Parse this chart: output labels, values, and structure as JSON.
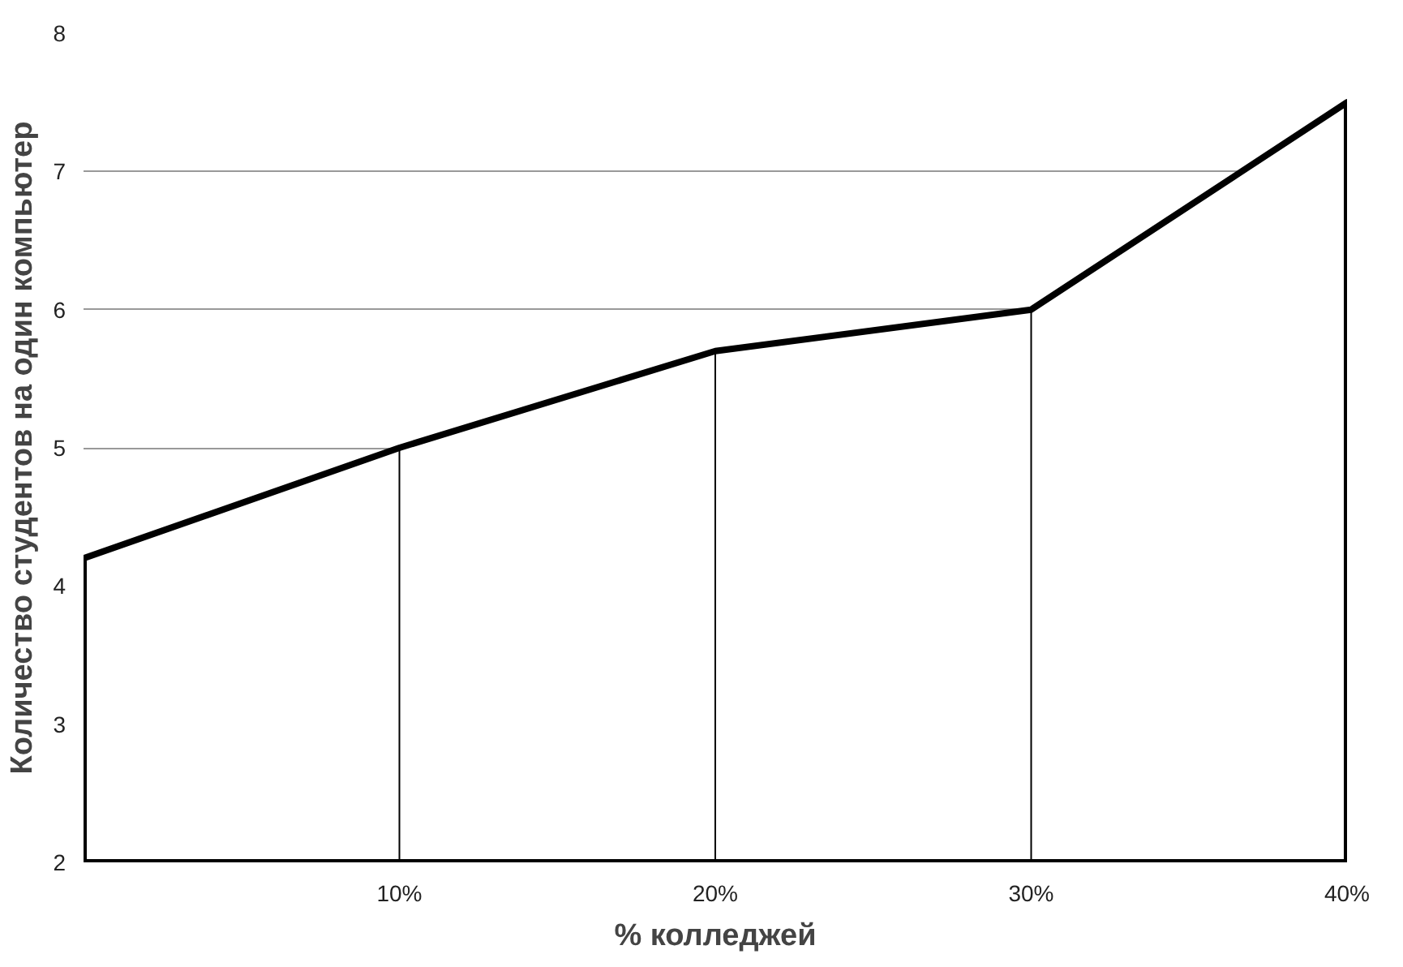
{
  "chart_data": {
    "type": "area",
    "xlabel": "% колледжей",
    "ylabel": "Количество студентов на один компьютер",
    "x": [
      0,
      10,
      20,
      30,
      40
    ],
    "series": [
      {
        "color": "#ffffff",
        "values": [
          4.2,
          5.0,
          5.7,
          6.0,
          7.5
        ],
        "errors": [
          null,
          [
            2,
            5.0
          ],
          [
            2,
            5.7
          ],
          [
            2,
            6.0
          ],
          null
        ]
      }
    ],
    "xlim": [
      0,
      40
    ],
    "xticks": [
      {
        "value": 10,
        "label": "10%"
      },
      {
        "value": 20,
        "label": "20%"
      },
      {
        "value": 30,
        "label": "30%"
      },
      {
        "value": 40,
        "label": "40%"
      }
    ],
    "ylim": [
      2,
      8
    ],
    "yticks": [
      2,
      3,
      4,
      5,
      6,
      7,
      8
    ],
    "grid": "y"
  }
}
